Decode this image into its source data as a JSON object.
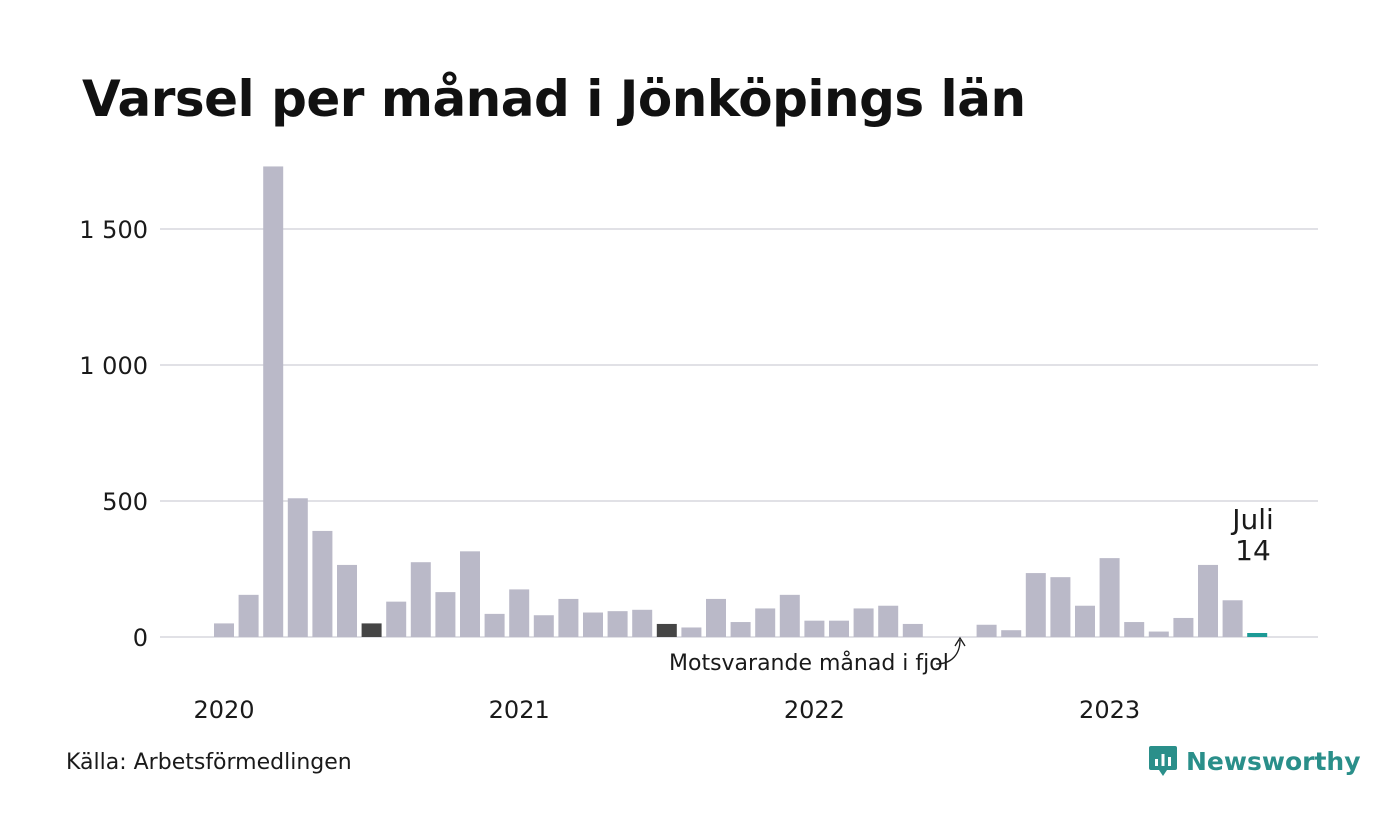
{
  "title": "Varsel per månad i Jönköpings län",
  "source": "Källa: Arbetsförmedlingen",
  "brand": {
    "name": "Newsworthy",
    "icon": "newsworthy-logo-icon",
    "color": "#2a8f8a"
  },
  "colors": {
    "bar": "#bab9c8",
    "highlight_prev": "#454545",
    "current": "#1c9a96",
    "grid": "#e1e1e6"
  },
  "chart_data": {
    "type": "bar",
    "x": [
      "2020-01",
      "2020-02",
      "2020-03",
      "2020-04",
      "2020-05",
      "2020-06",
      "2020-07",
      "2020-08",
      "2020-09",
      "2020-10",
      "2020-11",
      "2020-12",
      "2021-01",
      "2021-02",
      "2021-03",
      "2021-04",
      "2021-05",
      "2021-06",
      "2021-07",
      "2021-08",
      "2021-09",
      "2021-10",
      "2021-11",
      "2021-12",
      "2022-01",
      "2022-02",
      "2022-03",
      "2022-04",
      "2022-05",
      "2022-06",
      "2022-07",
      "2022-08",
      "2022-09",
      "2022-10",
      "2022-11",
      "2022-12",
      "2023-01",
      "2023-02",
      "2023-03",
      "2023-04",
      "2023-05",
      "2023-06",
      "2023-07"
    ],
    "values": [
      50,
      155,
      1730,
      510,
      390,
      265,
      50,
      130,
      275,
      165,
      315,
      85,
      175,
      80,
      140,
      90,
      95,
      100,
      48,
      35,
      140,
      55,
      105,
      155,
      60,
      60,
      105,
      115,
      48,
      0,
      0,
      45,
      25,
      235,
      220,
      115,
      290,
      55,
      20,
      70,
      265,
      135,
      14
    ],
    "highlight_prev_index": [
      6,
      18
    ],
    "current_index": 42,
    "yticks": [
      0,
      500,
      1000,
      1500
    ],
    "ytick_labels": [
      "0",
      "500",
      "1 000",
      "1 500"
    ],
    "xtick_labels": [
      "2020",
      "2021",
      "2022",
      "2023"
    ],
    "ylim": [
      0,
      1750
    ],
    "grid": true,
    "callout": {
      "month": "Juli",
      "value": "14"
    },
    "annotation": "Motsvarande månad i fjol"
  }
}
